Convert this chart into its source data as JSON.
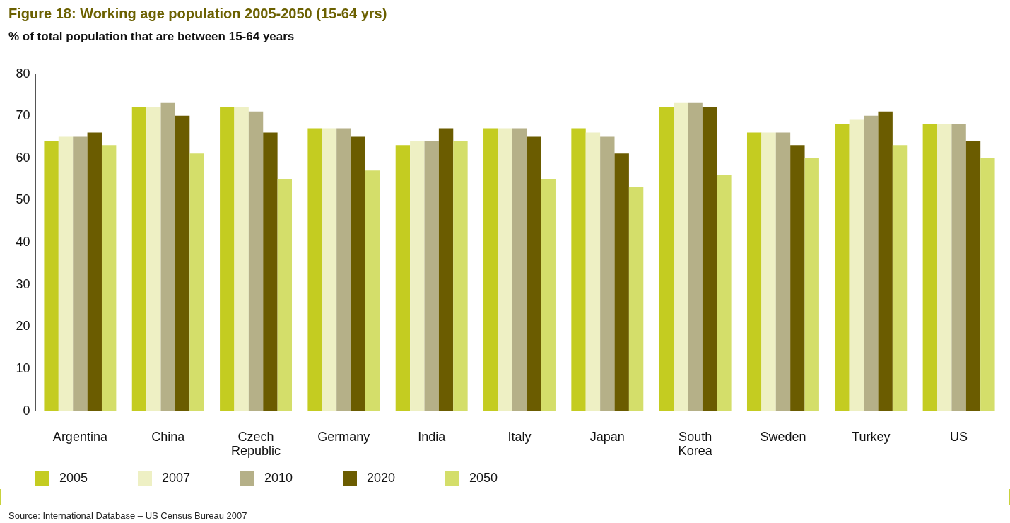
{
  "chart_data": {
    "type": "bar",
    "title": "Figure 18: Working age population 2005-2050 (15-64 yrs)",
    "subtitle": "% of total population that are between 15-64 years",
    "categories": [
      "Argentina",
      "China",
      "Czech Republic",
      "Germany",
      "India",
      "Italy",
      "Japan",
      "South Korea",
      "Sweden",
      "Turkey",
      "US"
    ],
    "series": [
      {
        "name": "2005",
        "color": "#c4cc21",
        "values": [
          64,
          72,
          72,
          67,
          63,
          67,
          67,
          72,
          66,
          68,
          68
        ]
      },
      {
        "name": "2007",
        "color": "#eef0c4",
        "values": [
          65,
          72,
          72,
          67,
          64,
          67,
          66,
          73,
          66,
          69,
          68
        ]
      },
      {
        "name": "2010",
        "color": "#b5b088",
        "values": [
          65,
          73,
          71,
          67,
          64,
          67,
          65,
          73,
          66,
          70,
          68
        ]
      },
      {
        "name": "2020",
        "color": "#6b5c00",
        "values": [
          66,
          70,
          66,
          65,
          67,
          65,
          61,
          72,
          63,
          71,
          64
        ]
      },
      {
        "name": "2050",
        "color": "#d4de6a",
        "values": [
          63,
          61,
          55,
          57,
          64,
          55,
          53,
          56,
          60,
          63,
          60
        ]
      }
    ],
    "ylim": [
      0,
      80
    ],
    "yticks": [
      0,
      10,
      20,
      30,
      40,
      50,
      60,
      70,
      80
    ],
    "grid": false,
    "legend": "bottom",
    "annotations": [
      "Source: International Database – US Census Bureau 2007"
    ]
  }
}
